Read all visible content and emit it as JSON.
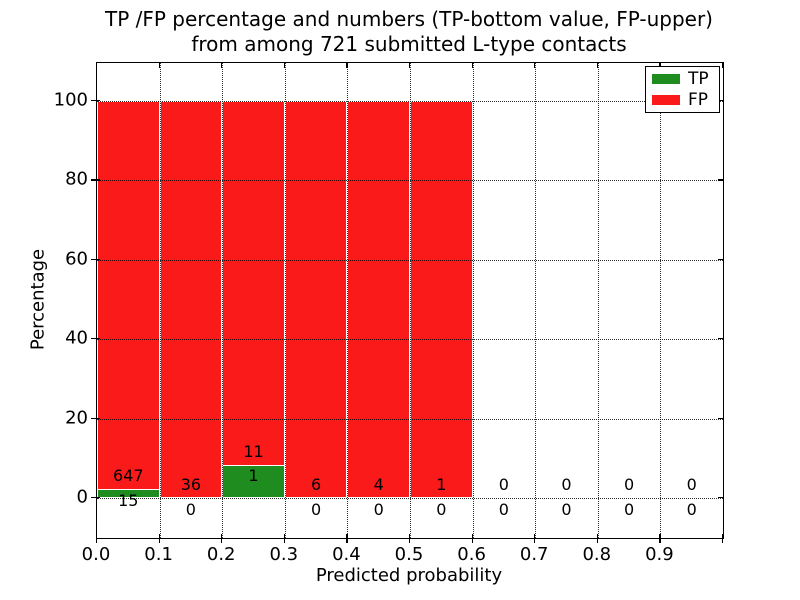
{
  "title": {
    "line1": "TP /FP percentage and numbers (TP-bottom value, FP-upper)",
    "line2": "from among 721 submitted L-type contacts"
  },
  "axes": {
    "xlabel": "Predicted probability",
    "ylabel": "Percentage",
    "x_tick_labels": [
      "0.0",
      "0.1",
      "0.2",
      "0.3",
      "0.4",
      "0.5",
      "0.6",
      "0.7",
      "0.8",
      "0.9"
    ],
    "y_tick_labels": [
      "0",
      "20",
      "40",
      "60",
      "80",
      "100"
    ]
  },
  "legend": {
    "items": [
      {
        "label": "TP",
        "color": "#1e8c1e"
      },
      {
        "label": "FP",
        "color": "#fa1a1a"
      }
    ]
  },
  "colors": {
    "tp": "#1e8c1e",
    "fp": "#fa1a1a",
    "bar_edge": "#ffffff",
    "grid": "#000000",
    "background": "#ffffff"
  },
  "chart_data": {
    "type": "bar",
    "stacked": true,
    "normalized_to_percent": true,
    "title": "TP /FP percentage and numbers (TP-bottom value, FP-upper) from among 721 submitted L-type contacts",
    "xlabel": "Predicted probability",
    "ylabel": "Percentage",
    "xlim": [
      0.0,
      1.0
    ],
    "ylim": [
      -10,
      110
    ],
    "x_ticks": [
      0.0,
      0.1,
      0.2,
      0.3,
      0.4,
      0.5,
      0.6,
      0.7,
      0.8,
      0.9
    ],
    "y_ticks": [
      0,
      20,
      40,
      60,
      80,
      100
    ],
    "grid": "dotted, both axes, drawn above bars",
    "legend_position": "upper right",
    "bin_width": 0.1,
    "categories": [
      0.0,
      0.1,
      0.2,
      0.3,
      0.4,
      0.5,
      0.6,
      0.7,
      0.8,
      0.9
    ],
    "series": [
      {
        "name": "TP",
        "values": [
          15,
          0,
          1,
          0,
          0,
          0,
          0,
          0,
          0,
          0
        ]
      },
      {
        "name": "FP",
        "values": [
          647,
          36,
          11,
          6,
          4,
          1,
          0,
          0,
          0,
          0
        ]
      }
    ],
    "total_contacts": 721,
    "bar_total_height_percent": [
      100,
      100,
      100,
      100,
      100,
      100,
      0,
      0,
      0,
      0
    ],
    "tp_percent_of_bin": [
      2.27,
      0,
      8.33,
      0,
      0,
      0,
      0,
      0,
      0,
      0
    ]
  }
}
